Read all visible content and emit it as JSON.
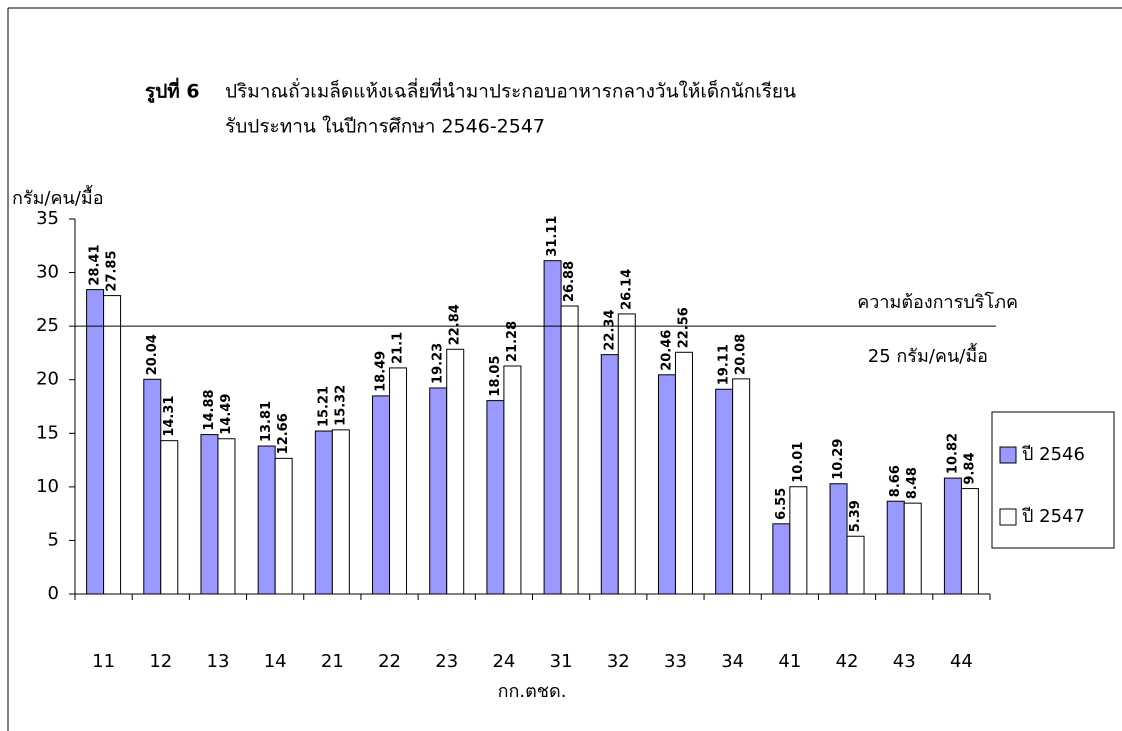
{
  "chart_data": {
    "type": "bar",
    "title_label": "รูปที่ 6",
    "title": "ปริมาณถั่วเมล็ดแห้งเฉลี่ยที่นำมาประกอบอาหารกลางวันให้เด็กนักเรียน",
    "subtitle": "รับประทาน ในปีการศึกษา 2546-2547",
    "y_label": "กรัม/คน/มื้อ",
    "x_label": "กก.ตชด.",
    "categories": [
      "11",
      "12",
      "13",
      "14",
      "21",
      "22",
      "23",
      "24",
      "31",
      "32",
      "33",
      "34",
      "41",
      "42",
      "43",
      "44"
    ],
    "series": [
      {
        "name": "ปี 2546",
        "color": "#9999ff",
        "values": [
          28.41,
          20.04,
          14.88,
          13.81,
          15.21,
          18.49,
          19.23,
          18.05,
          31.11,
          22.34,
          20.46,
          19.11,
          6.55,
          10.29,
          8.66,
          10.82
        ]
      },
      {
        "name": "ปี 2547",
        "color": "#ffffff",
        "values": [
          27.85,
          14.31,
          14.49,
          12.66,
          15.32,
          21.1,
          22.84,
          21.28,
          26.88,
          26.14,
          22.56,
          20.08,
          10.01,
          5.39,
          8.48,
          9.84
        ]
      }
    ],
    "ylim": [
      0,
      35
    ],
    "yticks": [
      0,
      5,
      10,
      15,
      20,
      25,
      30,
      35
    ],
    "reference_line": 25,
    "annotations": [
      "ความต้องการบริโภค",
      "25 กรัม/คน/มื้อ"
    ],
    "legend": "right"
  }
}
